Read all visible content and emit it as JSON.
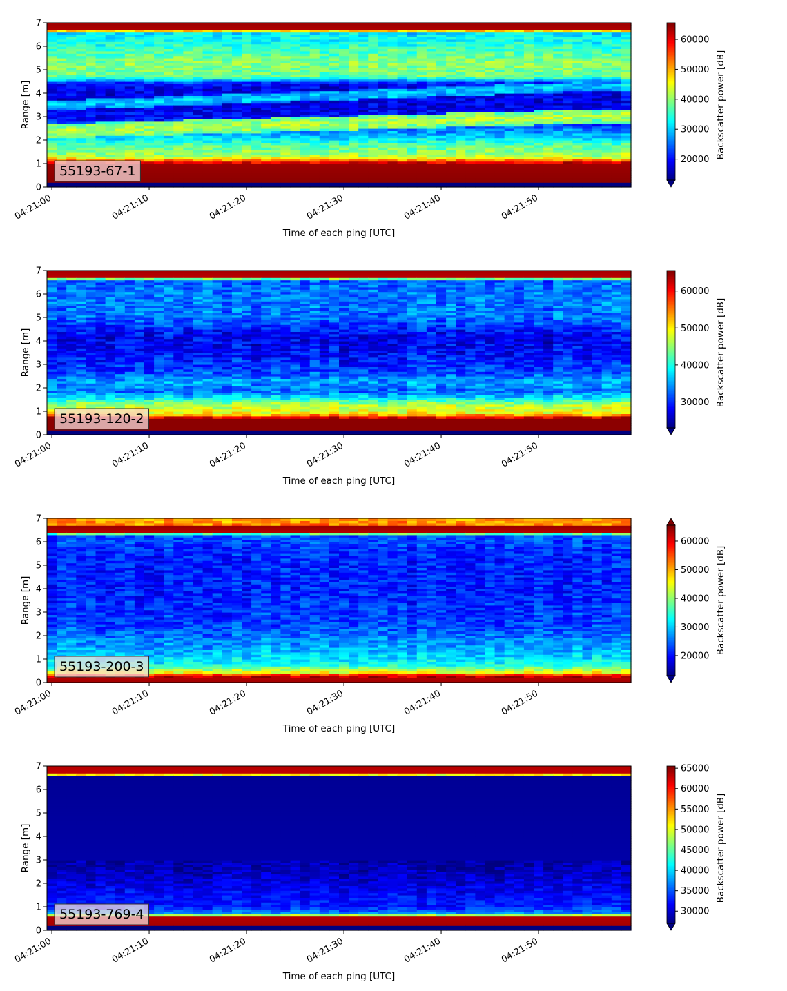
{
  "chart_data": [
    {
      "type": "heatmap",
      "panel_label": "55193-67-1",
      "xlabel": "Time of each ping [UTC]",
      "ylabel": "Range [m]",
      "colorbar_label": "Backscatter power [dB]",
      "x_ticks": [
        "04:21:00",
        "04:21:10",
        "04:21:20",
        "04:21:30",
        "04:21:40",
        "04:21:50"
      ],
      "x_range_seconds": [
        -0.5,
        59.5
      ],
      "y_ticks": [
        0,
        1,
        2,
        3,
        4,
        5,
        6,
        7
      ],
      "ylim": [
        0,
        7
      ],
      "clim": [
        13000,
        65535
      ],
      "colorbar_ticks": [
        20000,
        30000,
        40000,
        50000,
        60000
      ],
      "colorbar_extend": "min",
      "colormap": "jet",
      "profile": [
        {
          "range": 0.2,
          "value": 13000
        },
        {
          "range": 0.22,
          "value": 65000
        },
        {
          "range": 1.0,
          "value": 64000
        },
        {
          "range": 1.15,
          "value": 52000
        },
        {
          "range": 1.3,
          "value": 42000
        },
        {
          "range": 1.8,
          "value": 37000
        },
        {
          "range": 2.2,
          "value": 29000
        },
        {
          "range": 2.8,
          "value": 21000
        },
        {
          "range": 3.5,
          "value": 17500
        },
        {
          "range": 4.4,
          "value": 19000
        },
        {
          "range": 4.7,
          "value": 38000
        },
        {
          "range": 5.3,
          "value": 40000
        },
        {
          "range": 6.0,
          "value": 35000
        },
        {
          "range": 6.6,
          "value": 31000
        },
        {
          "range": 6.7,
          "value": 63000
        },
        {
          "range": 7.0,
          "value": 64000
        }
      ],
      "bands": [
        {
          "range_start": 2.4,
          "range_end": 3.05,
          "width": 0.3,
          "value": 42000
        },
        {
          "range_start": 3.5,
          "range_end": 4.35,
          "width": 0.2,
          "value": 30000
        }
      ],
      "noise": 4500
    },
    {
      "type": "heatmap",
      "panel_label": "55193-120-2",
      "xlabel": "Time of each ping [UTC]",
      "ylabel": "Range [m]",
      "colorbar_label": "Backscatter power [dB]",
      "x_ticks": [
        "04:21:00",
        "04:21:10",
        "04:21:20",
        "04:21:30",
        "04:21:40",
        "04:21:50"
      ],
      "x_range_seconds": [
        -0.5,
        59.5
      ],
      "y_ticks": [
        0,
        1,
        2,
        3,
        4,
        5,
        6,
        7
      ],
      "ylim": [
        0,
        7
      ],
      "clim": [
        23000,
        65535
      ],
      "colorbar_ticks": [
        30000,
        40000,
        50000,
        60000
      ],
      "colorbar_extend": "min",
      "colormap": "jet",
      "profile": [
        {
          "range": 0.2,
          "value": 23000
        },
        {
          "range": 0.22,
          "value": 65000
        },
        {
          "range": 0.7,
          "value": 65000
        },
        {
          "range": 0.9,
          "value": 50000
        },
        {
          "range": 1.3,
          "value": 46000
        },
        {
          "range": 1.6,
          "value": 38000
        },
        {
          "range": 1.85,
          "value": 33000
        },
        {
          "range": 2.3,
          "value": 35000
        },
        {
          "range": 2.7,
          "value": 31000
        },
        {
          "range": 3.5,
          "value": 28500
        },
        {
          "range": 4.2,
          "value": 27500
        },
        {
          "range": 5.0,
          "value": 33000
        },
        {
          "range": 6.0,
          "value": 33500
        },
        {
          "range": 6.62,
          "value": 32000
        },
        {
          "range": 6.7,
          "value": 63000
        },
        {
          "range": 7.0,
          "value": 64000
        }
      ],
      "bands": [],
      "noise": 4000
    },
    {
      "type": "heatmap",
      "panel_label": "55193-200-3",
      "xlabel": "Time of each ping [UTC]",
      "ylabel": "Range [m]",
      "colorbar_label": "Backscatter power [dB]",
      "x_ticks": [
        "04:21:00",
        "04:21:10",
        "04:21:20",
        "04:21:30",
        "04:21:40",
        "04:21:50"
      ],
      "x_range_seconds": [
        -0.5,
        59.5
      ],
      "y_ticks": [
        0,
        1,
        2,
        3,
        4,
        5,
        6,
        7
      ],
      "ylim": [
        0,
        7
      ],
      "clim": [
        13000,
        65535
      ],
      "colorbar_ticks": [
        20000,
        30000,
        40000,
        50000,
        60000
      ],
      "colorbar_extend": "both",
      "colormap": "jet",
      "profile": [
        {
          "range": 0.0,
          "value": 64000
        },
        {
          "range": 0.3,
          "value": 62000
        },
        {
          "range": 0.45,
          "value": 45000
        },
        {
          "range": 0.8,
          "value": 33000
        },
        {
          "range": 1.5,
          "value": 28000
        },
        {
          "range": 2.5,
          "value": 23000
        },
        {
          "range": 4.0,
          "value": 21000
        },
        {
          "range": 5.5,
          "value": 21500
        },
        {
          "range": 6.3,
          "value": 24000
        },
        {
          "range": 6.45,
          "value": 63000
        },
        {
          "range": 6.65,
          "value": 64000
        },
        {
          "range": 6.75,
          "value": 52000
        },
        {
          "range": 7.0,
          "value": 50000
        }
      ],
      "bands": [],
      "noise": 4500
    },
    {
      "type": "heatmap",
      "panel_label": "55193-769-4",
      "xlabel": "Time of each ping [UTC]",
      "ylabel": "Range [m]",
      "colorbar_label": "Backscatter power [dB]",
      "x_ticks": [
        "04:21:00",
        "04:21:10",
        "04:21:20",
        "04:21:30",
        "04:21:40",
        "04:21:50"
      ],
      "x_range_seconds": [
        -0.5,
        59.5
      ],
      "y_ticks": [
        0,
        1,
        2,
        3,
        4,
        5,
        6,
        7
      ],
      "ylim": [
        0,
        7
      ],
      "clim": [
        27000,
        65535
      ],
      "colorbar_ticks": [
        30000,
        35000,
        40000,
        45000,
        50000,
        55000,
        60000,
        65000
      ],
      "colorbar_extend": "min",
      "colormap": "jet",
      "profile": [
        {
          "range": 0.2,
          "value": 27000
        },
        {
          "range": 0.22,
          "value": 64000
        },
        {
          "range": 0.6,
          "value": 63500
        },
        {
          "range": 0.68,
          "value": 38000
        },
        {
          "range": 1.0,
          "value": 33000
        },
        {
          "range": 1.5,
          "value": 32000
        },
        {
          "range": 2.2,
          "value": 30000
        },
        {
          "range": 3.0,
          "value": 28500
        },
        {
          "range": 6.55,
          "value": 27800
        },
        {
          "range": 6.62,
          "value": 44000
        },
        {
          "range": 6.7,
          "value": 63000
        },
        {
          "range": 7.0,
          "value": 63500
        }
      ],
      "bands": [],
      "noise": 2500
    }
  ]
}
